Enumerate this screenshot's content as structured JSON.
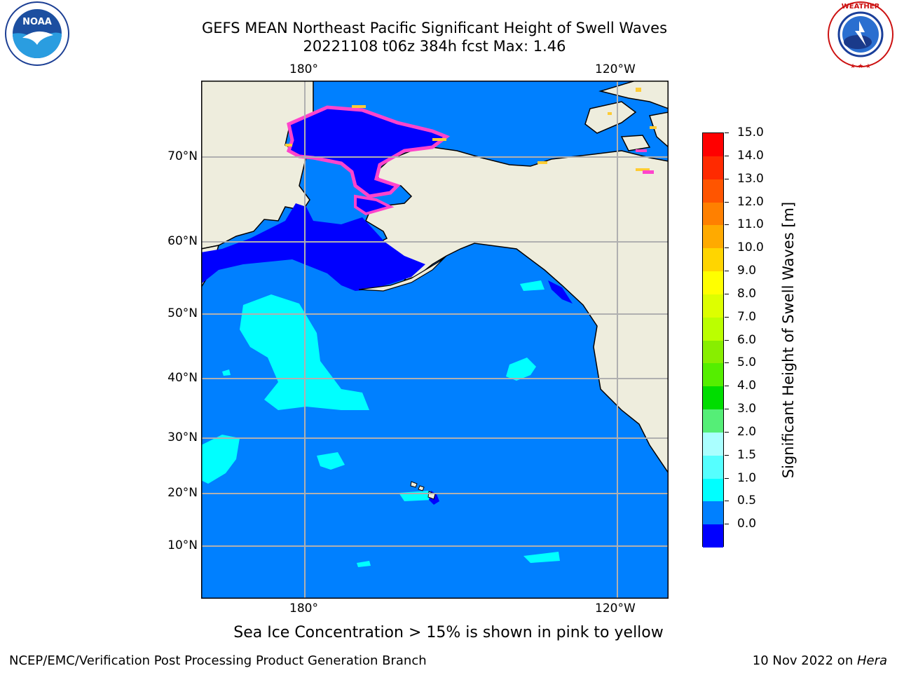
{
  "header": {
    "title_line1": "GEFS MEAN Northeast Pacific Significant Height of Swell Waves",
    "title_line2": "20221108 t06z 384h fcst   Max: 1.46"
  },
  "logos": {
    "left": {
      "name": "NOAA",
      "ring_text": "NATIONAL OCEANIC AND ATMOSPHERIC ADMINISTRATION · U.S. DEPARTMENT OF COMMERCE"
    },
    "right": {
      "name": "NATIONAL WEATHER SERVICE"
    }
  },
  "map": {
    "top_lon_labels": [
      "180°",
      "120°W"
    ],
    "bottom_lon_labels": [
      "180°",
      "120°W"
    ],
    "lat_labels": [
      "70°N",
      "60°N",
      "50°N",
      "40°N",
      "30°N",
      "20°N",
      "10°N"
    ],
    "colors": {
      "ocean_dark": "#0000ff",
      "ocean": "#0080ff",
      "swell_1": "#00ffff",
      "land": "#eeeddd",
      "ice": "#ff44cc",
      "ice_edge": "#ffcc33",
      "grid": "#b0b0b0"
    }
  },
  "colorbar": {
    "label": "Significant Height of Swell Waves [m]",
    "ticks": [
      "15.0",
      "14.0",
      "13.0",
      "12.0",
      "11.0",
      "10.0",
      "9.0",
      "8.0",
      "7.0",
      "6.0",
      "5.0",
      "4.0",
      "3.0",
      "2.0",
      "1.5",
      "1.0",
      "0.5",
      "0.0"
    ],
    "colors_top_to_bottom": [
      "#ff0000",
      "#ff2a00",
      "#ff5500",
      "#ff8000",
      "#ffaa00",
      "#ffd500",
      "#ffff00",
      "#ddff00",
      "#bbff00",
      "#88ee00",
      "#55ee00",
      "#00dd00",
      "#55ee77",
      "#aaffff",
      "#55ffff",
      "#00ffff",
      "#0080ff",
      "#0000ff"
    ]
  },
  "note": "Sea Ice Concentration > 15% is shown in pink to yellow",
  "footer": {
    "left": "NCEP/EMC/Verification Post Processing Product Generation Branch",
    "right_date": "10 Nov 2022 on ",
    "right_host": "Hera"
  }
}
